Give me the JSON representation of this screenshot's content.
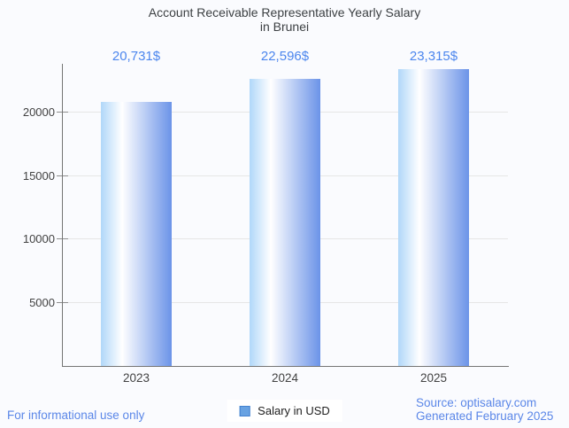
{
  "title": {
    "line1": "Account Receivable Representative Yearly Salary",
    "line2": "in Brunei"
  },
  "chart_data": {
    "type": "bar",
    "title": "Account Receivable Representative Yearly Salary in Brunei",
    "categories": [
      "2023",
      "2024",
      "2025"
    ],
    "series": [
      {
        "name": "Salary in USD",
        "values": [
          20731,
          22596,
          23315
        ]
      }
    ],
    "value_labels": [
      "20,731$",
      "22,596$",
      "23,315$"
    ],
    "xlabel": "",
    "ylabel": "",
    "ylim": [
      0,
      23750
    ],
    "yticks": [
      5000,
      10000,
      15000,
      20000
    ],
    "grid": true,
    "legend_position": "bottom",
    "bar_gradient": [
      "#b0d7f9",
      "#ffffff",
      "#6b93e8"
    ]
  },
  "legend": {
    "label": "Salary in USD",
    "swatch_color": "#68a2e2",
    "swatch_border": "#4381cf"
  },
  "footer": {
    "left": "For informational use only",
    "source": "Source: optisalary.com",
    "generated": "Generated February 2025"
  },
  "colors": {
    "background": "#fafbfe",
    "title_text": "#3c4043",
    "axis_text": "#424242",
    "value_text": "#4c86ee",
    "footer_text": "#5b87e8",
    "axis_line": "#757575",
    "gridline": "#e6e6e6"
  }
}
